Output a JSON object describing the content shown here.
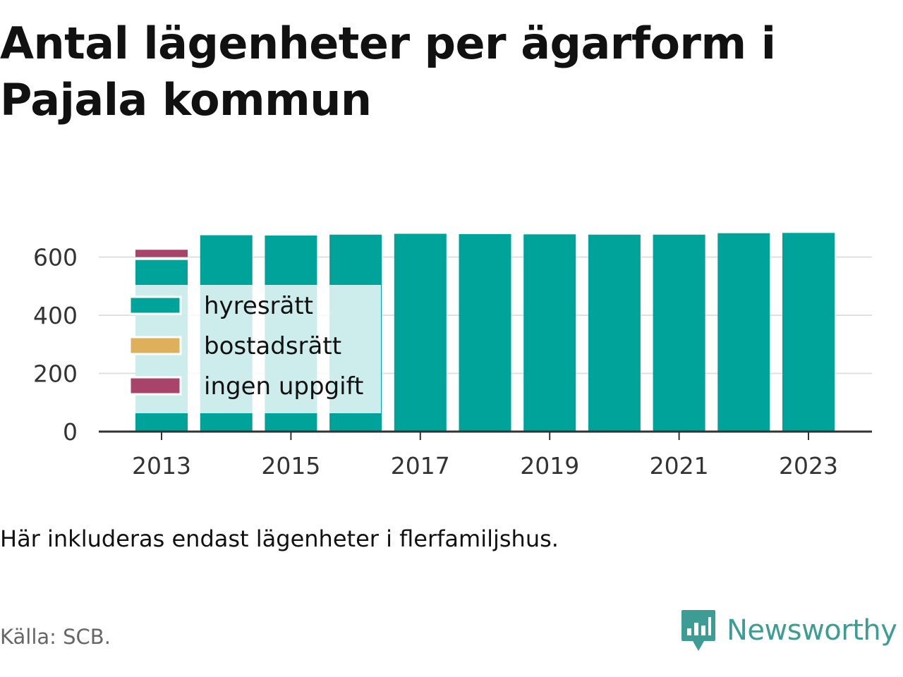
{
  "title": "Antal lägenheter per ägarform i Pajala kommun",
  "note": "Här inkluderas endast lägenheter i flerfamiljshus.",
  "source": "Källa: SCB.",
  "brand": {
    "name": "Newsworthy",
    "icon": "newsworthy-logo-icon",
    "color": "#3d9c94"
  },
  "chart_data": {
    "type": "bar",
    "stacked": true,
    "categories": [
      "2013",
      "2014",
      "2015",
      "2016",
      "2017",
      "2018",
      "2019",
      "2020",
      "2021",
      "2022",
      "2023"
    ],
    "x_tick_labels": [
      "2013",
      "2015",
      "2017",
      "2019",
      "2021",
      "2023"
    ],
    "series": [
      {
        "name": "hyresrätt",
        "color": "#00a39a",
        "values": [
          595,
          675,
          674,
          677,
          680,
          679,
          678,
          677,
          677,
          682,
          683
        ]
      },
      {
        "name": "bostadsrätt",
        "color": "#deb05b",
        "values": [
          0,
          0,
          0,
          0,
          0,
          0,
          0,
          0,
          0,
          0,
          0
        ]
      },
      {
        "name": "ingen uppgift",
        "color": "#a8446a",
        "values": [
          30,
          0,
          0,
          0,
          0,
          0,
          0,
          0,
          0,
          0,
          0
        ]
      }
    ],
    "y_ticks": [
      0,
      200,
      400,
      600
    ],
    "ylim": [
      0,
      700
    ],
    "grid": true,
    "legend_position": "top-left inside plot"
  }
}
